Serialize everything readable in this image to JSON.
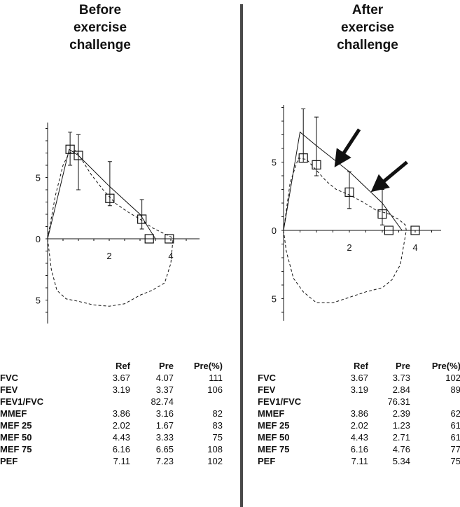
{
  "colors": {
    "ink": "#111111",
    "divider": "#4a4a4a",
    "background": "#ffffff"
  },
  "chart_data": [
    {
      "type": "line",
      "title": "Before exercise challenge",
      "title_lines": [
        "Before",
        "exercise",
        "challenge"
      ],
      "xlabel": "",
      "ylabel": "",
      "xlim": [
        0,
        4.8
      ],
      "ylim": [
        -7,
        9
      ],
      "x_tick_labels": [
        "2",
        "4"
      ],
      "x_tick_values": [
        2,
        4
      ],
      "y_tick_labels": [
        "5",
        "0",
        "5"
      ],
      "y_tick_values": [
        5,
        0,
        -5
      ],
      "grid": false,
      "predicted_line": {
        "x": [
          0,
          0.7,
          1.0,
          2.0,
          3.0,
          3.5
        ],
        "y": [
          0,
          7.3,
          6.8,
          4.3,
          2.0,
          0
        ]
      },
      "measured_expiratory": {
        "x": [
          0,
          0.25,
          0.5,
          0.7,
          0.9,
          1.1,
          1.4,
          1.8,
          2.2,
          2.6,
          3.0,
          3.4,
          3.8,
          4.05,
          4.07
        ],
        "y": [
          0,
          3.5,
          6.0,
          7.0,
          7.2,
          6.5,
          5.3,
          4.0,
          2.9,
          2.2,
          1.6,
          0.9,
          0.4,
          0.1,
          0
        ]
      },
      "measured_inspiratory": {
        "x": [
          0,
          0.12,
          0.3,
          0.6,
          1.0,
          1.5,
          2.0,
          2.5,
          3.0,
          3.4,
          3.8,
          4.0,
          4.07
        ],
        "y": [
          0,
          -2.5,
          -4.2,
          -4.9,
          -5.1,
          -5.4,
          -5.5,
          -5.3,
          -4.6,
          -4.2,
          -3.6,
          -2.0,
          0
        ]
      },
      "reference_points": [
        {
          "x": 0.73,
          "y": 7.3,
          "upper": 8.7,
          "lower": 6.0
        },
        {
          "x": 1.0,
          "y": 6.8,
          "upper": 8.5,
          "lower": 4.0
        },
        {
          "x": 2.02,
          "y": 3.3,
          "upper": 6.3,
          "lower": 2.7
        },
        {
          "x": 3.06,
          "y": 1.6,
          "upper": 3.2,
          "lower": 0.8
        },
        {
          "x": 3.3,
          "y": 0,
          "upper": null,
          "lower": null
        },
        {
          "x": 3.95,
          "y": 0,
          "upper": null,
          "lower": null
        }
      ],
      "arrows": []
    },
    {
      "type": "line",
      "title": "After exercise challenge",
      "title_lines": [
        "After",
        "exercise",
        "challenge"
      ],
      "xlabel": "",
      "ylabel": "",
      "xlim": [
        0,
        4.8
      ],
      "ylim": [
        -7,
        9
      ],
      "x_tick_labels": [
        "2",
        "4"
      ],
      "x_tick_values": [
        2,
        4
      ],
      "y_tick_labels": [
        "5",
        "0",
        "5"
      ],
      "y_tick_values": [
        5,
        0,
        -5
      ],
      "grid": false,
      "predicted_line": {
        "x": [
          0,
          0.5,
          1.0,
          2.0,
          3.0,
          3.6
        ],
        "y": [
          0,
          7.2,
          6.2,
          4.3,
          2.0,
          0
        ]
      },
      "measured_expiratory": {
        "x": [
          0,
          0.2,
          0.45,
          0.7,
          1.0,
          1.3,
          1.6,
          2.0,
          2.4,
          2.8,
          3.2,
          3.5,
          3.7,
          3.73
        ],
        "y": [
          0,
          3.5,
          5.3,
          5.2,
          4.4,
          3.6,
          3.0,
          2.6,
          2.1,
          1.5,
          1.2,
          0.8,
          0.4,
          0
        ]
      },
      "measured_inspiratory": {
        "x": [
          0,
          0.08,
          0.3,
          0.6,
          1.0,
          1.5,
          2.0,
          2.5,
          3.0,
          3.3,
          3.55,
          3.73
        ],
        "y": [
          0,
          -1.5,
          -3.5,
          -4.5,
          -5.3,
          -5.3,
          -4.9,
          -4.5,
          -4.2,
          -3.6,
          -2.5,
          0
        ]
      },
      "reference_points": [
        {
          "x": 0.6,
          "y": 5.3,
          "upper": 8.9,
          "lower": 5.0
        },
        {
          "x": 1.0,
          "y": 4.8,
          "upper": 8.3,
          "lower": 4.0
        },
        {
          "x": 2.0,
          "y": 2.8,
          "upper": 4.3,
          "lower": 1.6
        },
        {
          "x": 3.0,
          "y": 1.2,
          "upper": 3.0,
          "lower": 0.4
        },
        {
          "x": 3.2,
          "y": 0,
          "upper": null,
          "lower": null
        },
        {
          "x": 4.0,
          "y": 0,
          "upper": null,
          "lower": null
        }
      ],
      "arrows": [
        {
          "from_x": 2.3,
          "from_y": 7.4,
          "to_x": 1.65,
          "to_y": 5.0
        },
        {
          "from_x": 3.75,
          "from_y": 5.0,
          "to_x": 2.8,
          "to_y": 3.1
        }
      ]
    }
  ],
  "tables": [
    {
      "headers": [
        "",
        "Ref",
        "Pre",
        "Pre(%)"
      ],
      "rows": [
        [
          "FVC",
          "3.67",
          "4.07",
          "111"
        ],
        [
          "FEV",
          "3.19",
          "3.37",
          "106"
        ],
        [
          "FEV1/FVC",
          "",
          "82.74",
          ""
        ],
        [
          "MMEF",
          "3.86",
          "3.16",
          "82"
        ],
        [
          "MEF 25",
          "2.02",
          "1.67",
          "83"
        ],
        [
          "MEF 50",
          "4.43",
          "3.33",
          "75"
        ],
        [
          "MEF 75",
          "6.16",
          "6.65",
          "108"
        ],
        [
          "PEF",
          "7.11",
          "7.23",
          "102"
        ]
      ]
    },
    {
      "headers": [
        "",
        "Ref",
        "Pre",
        "Pre(%)"
      ],
      "rows": [
        [
          "FVC",
          "3.67",
          "3.73",
          "102"
        ],
        [
          "FEV",
          "3.19",
          "2.84",
          "89"
        ],
        [
          "FEV1/FVC",
          "",
          "76.31",
          ""
        ],
        [
          "MMEF",
          "3.86",
          "2.39",
          "62"
        ],
        [
          "MEF 25",
          "2.02",
          "1.23",
          "61"
        ],
        [
          "MEF 50",
          "4.43",
          "2.71",
          "61"
        ],
        [
          "MEF 75",
          "6.16",
          "4.76",
          "77"
        ],
        [
          "PEF",
          "7.11",
          "5.34",
          "75"
        ]
      ]
    }
  ]
}
